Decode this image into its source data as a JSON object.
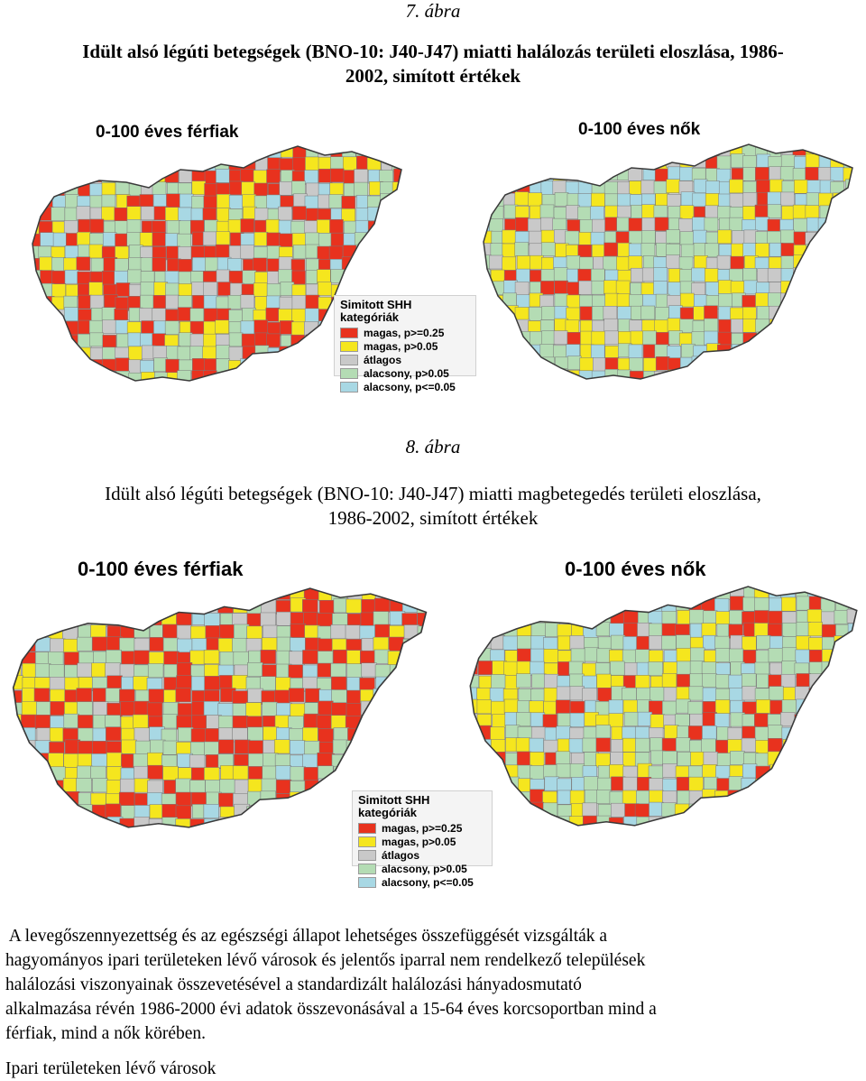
{
  "figure7": {
    "number": "7. ábra",
    "caption_line1": "Idült alsó légúti betegségek (BNO-10: J40-J47) miatti halálozás területi eloszlása, 1986-",
    "caption_line2": "2002, simított értékek",
    "left_title": "0-100 éves férfiak",
    "right_title": "0-100 éves nők",
    "legend": {
      "title": "Simitott SHH kategóriák",
      "items": [
        {
          "label": "magas, p>=0.25",
          "color": "#e8321e"
        },
        {
          "label": "magas, p>0.05",
          "color": "#f5e61e"
        },
        {
          "label": "átlagos",
          "color": "#c9c9c9"
        },
        {
          "label": "alacsony, p>0.05",
          "color": "#b4dcb4"
        },
        {
          "label": "alacsony, p<=0.05",
          "color": "#a8d8e4"
        }
      ]
    }
  },
  "figure8": {
    "number": "8. ábra",
    "caption_line1": "Idült alsó légúti betegségek (BNO-10: J40-J47) miatti magbetegedés területi eloszlása,",
    "caption_line2": "1986-2002, simított értékek",
    "left_title": "0-100 éves férfiak",
    "right_title": "0-100 éves nők",
    "legend": {
      "title": "Simitott SHH kategóriák",
      "items": [
        {
          "label": "magas, p>=0.25",
          "color": "#e8321e"
        },
        {
          "label": "magas, p>0.05",
          "color": "#f5e61e"
        },
        {
          "label": "átlagos",
          "color": "#c9c9c9"
        },
        {
          "label": "alacsony, p>0.05",
          "color": "#b4dcb4"
        },
        {
          "label": "alacsony, p<=0.05",
          "color": "#a8d8e4"
        }
      ]
    }
  },
  "body_text": {
    "paragraph_lines": [
      " A levegőszennyezettség és az egészségi állapot lehetséges összefüggését vizsgálták a",
      "hagyományos ipari területeken lévő városok és jelentős iparral nem rendelkező települések",
      "halálozási viszonyainak összevetésével a standardizált halálozási hányadosmutató",
      "alkalmazása révén 1986-2000 évi adatok összevonásával a 15-64 éves korcsoportban mind a",
      "férfiak, mind a nők körében."
    ],
    "subheading": "Ipari területeken lévő városok"
  }
}
